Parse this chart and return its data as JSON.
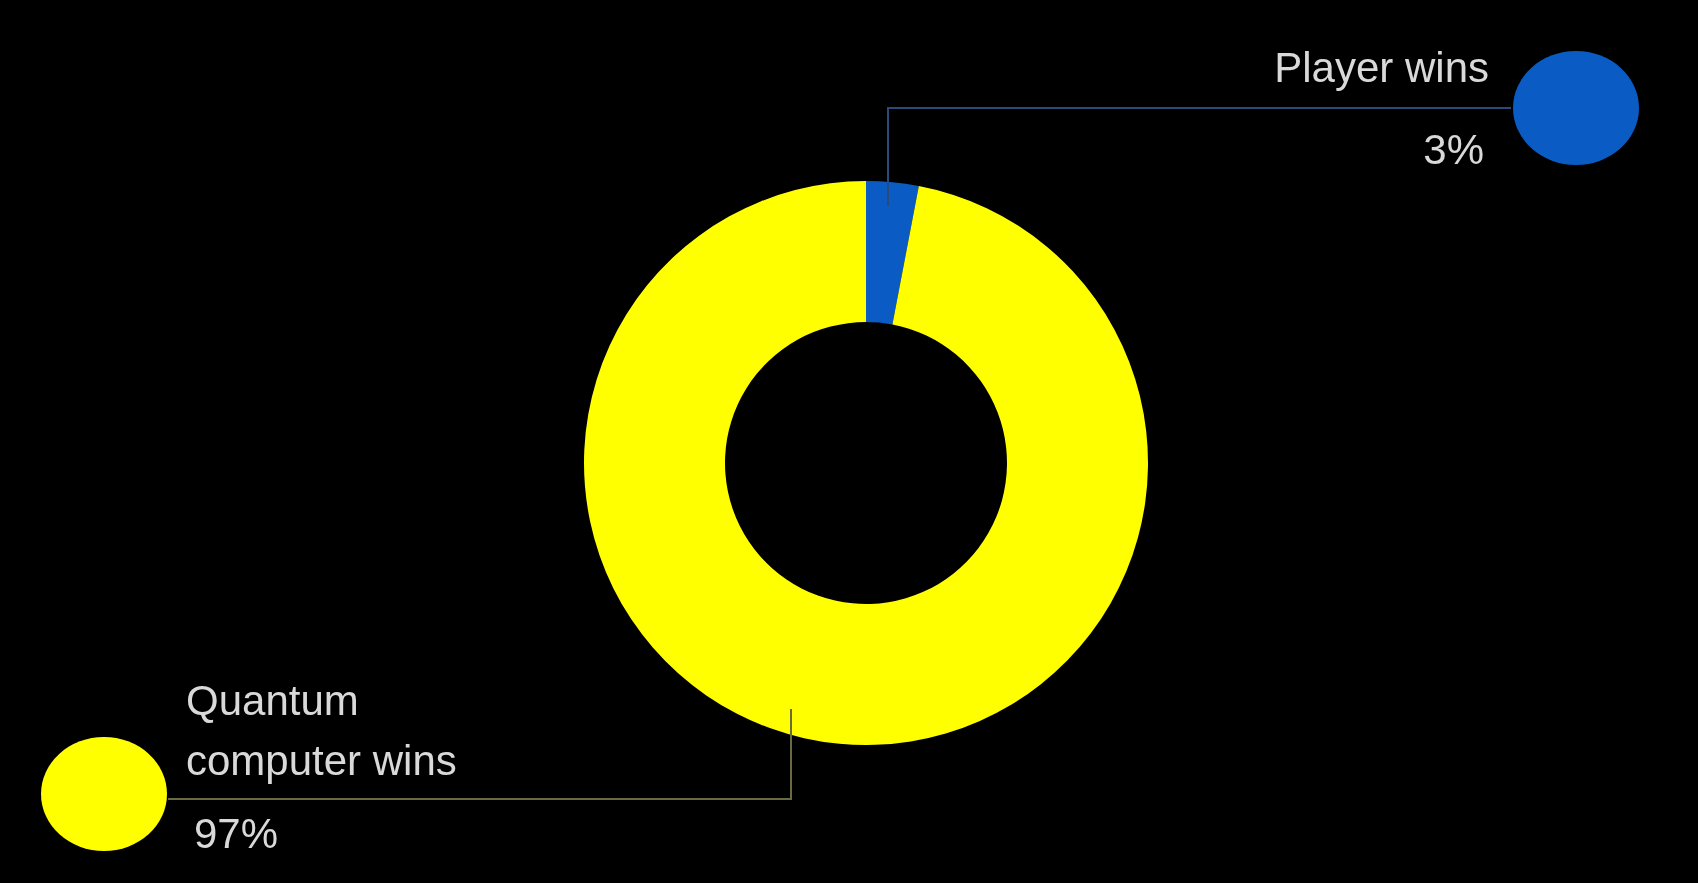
{
  "chart_data": {
    "type": "donut",
    "categories": [
      "Player wins",
      "Quantum computer wins"
    ],
    "values": [
      3,
      97
    ],
    "colors": [
      "#0a5cc4",
      "#ffff00"
    ],
    "value_labels": [
      "3%",
      "97%"
    ]
  }
}
